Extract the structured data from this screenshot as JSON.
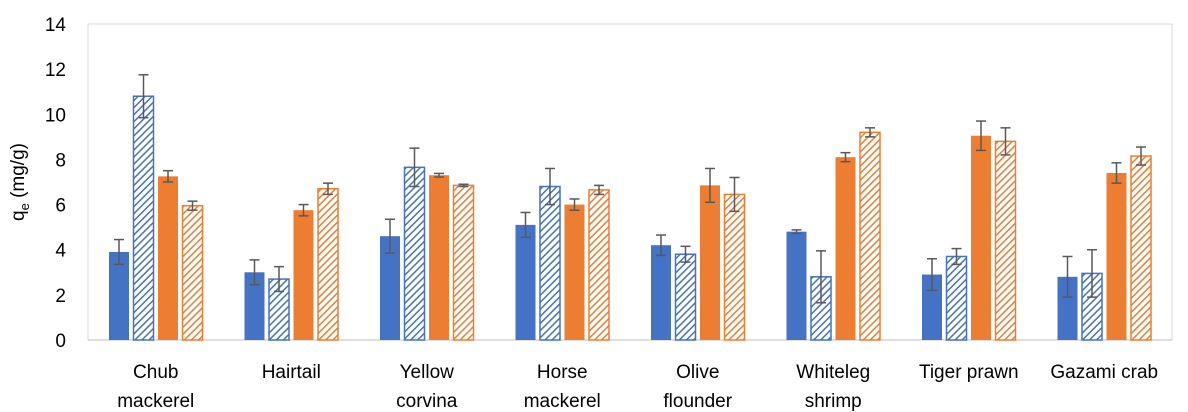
{
  "chart_data": {
    "type": "bar",
    "ylabel": "q_e (mg/g)",
    "ylabel_main": "q",
    "ylabel_sub": "e",
    "ylabel_unit": " (mg/g)",
    "ylim": [
      0,
      14
    ],
    "yticks": [
      "0",
      "2",
      "4",
      "6",
      "8",
      "10",
      "12",
      "14"
    ],
    "grid": false,
    "legend": "none",
    "categories": [
      [
        "Chub",
        "mackerel"
      ],
      [
        "Hairtail"
      ],
      [
        "Yellow",
        "corvina"
      ],
      [
        "Horse",
        "mackerel"
      ],
      [
        "Olive",
        "flounder"
      ],
      [
        "Whiteleg",
        "shrimp"
      ],
      [
        "Tiger prawn"
      ],
      [
        "Gazami crab"
      ]
    ],
    "series": [
      {
        "color": "#4472c4",
        "pattern": "solid",
        "values": [
          3.9,
          3.0,
          4.6,
          5.1,
          4.2,
          4.8,
          2.9,
          2.8
        ],
        "errors": [
          0.55,
          0.55,
          0.75,
          0.55,
          0.45,
          0.08,
          0.7,
          0.9
        ]
      },
      {
        "color": "#4472c4",
        "pattern": "hatched",
        "values": [
          10.8,
          2.7,
          7.65,
          6.8,
          3.8,
          2.8,
          3.7,
          2.95
        ],
        "errors": [
          0.95,
          0.55,
          0.85,
          0.8,
          0.35,
          1.15,
          0.35,
          1.05
        ]
      },
      {
        "color": "#ed7d31",
        "pattern": "solid",
        "values": [
          7.25,
          5.75,
          7.3,
          6.0,
          6.85,
          8.1,
          9.05,
          7.4
        ],
        "errors": [
          0.25,
          0.25,
          0.08,
          0.25,
          0.75,
          0.2,
          0.65,
          0.45
        ]
      },
      {
        "color": "#ed7d31",
        "pattern": "hatched",
        "values": [
          5.95,
          6.7,
          6.85,
          6.65,
          6.45,
          9.2,
          8.8,
          8.15
        ],
        "errors": [
          0.2,
          0.25,
          0.05,
          0.2,
          0.75,
          0.2,
          0.6,
          0.4
        ]
      }
    ]
  }
}
